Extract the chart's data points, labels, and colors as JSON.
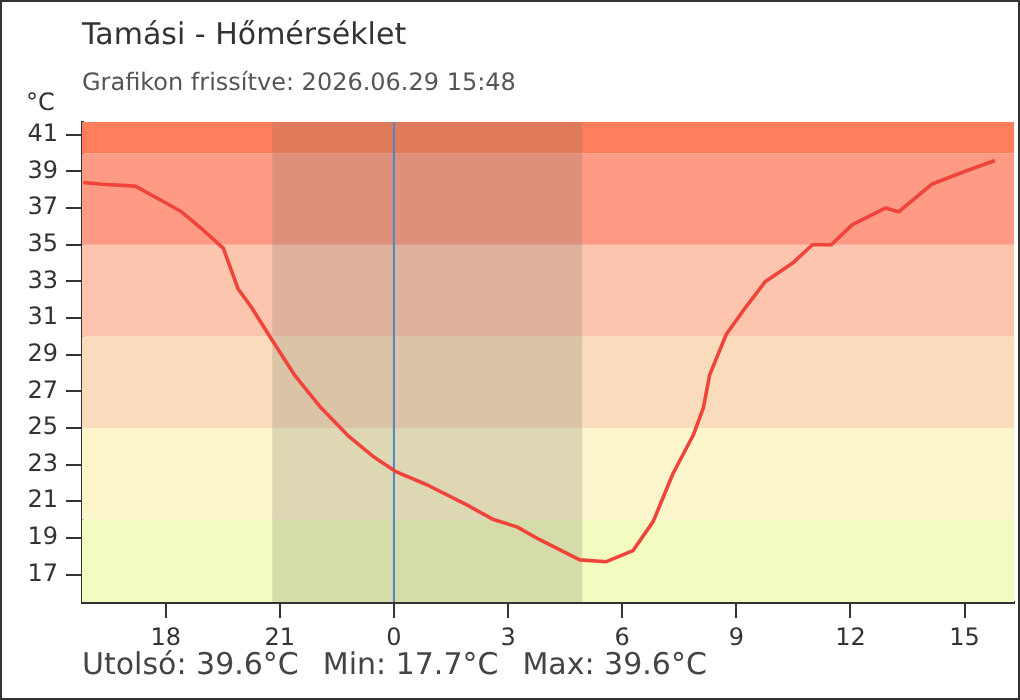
{
  "chart_data": {
    "type": "line",
    "title": "Tamási - Hőmérséklet",
    "subtitle": "Grafikon frissítve: 2026.06.29 15:48",
    "ylabel": "°C",
    "annotations": [
      "Utolsó: 39.6°C",
      "Min: 17.7°C",
      "Max: 39.6°C"
    ],
    "xlim": [
      "2026-06-28T15:48",
      "2026-06-29T16:18"
    ],
    "ylim": [
      15.5,
      41.7
    ],
    "xticks": [
      {
        "value": "2026-06-28T18:00",
        "label": "18"
      },
      {
        "value": "2026-06-28T21:00",
        "label": "21"
      },
      {
        "value": "2026-06-29T00:00",
        "label": "0"
      },
      {
        "value": "2026-06-29T03:00",
        "label": "3"
      },
      {
        "value": "2026-06-29T06:00",
        "label": "6"
      },
      {
        "value": "2026-06-29T09:00",
        "label": "9"
      },
      {
        "value": "2026-06-29T12:00",
        "label": "12"
      },
      {
        "value": "2026-06-29T15:00",
        "label": "15"
      }
    ],
    "yticks": [
      17,
      19,
      21,
      23,
      25,
      27,
      29,
      31,
      33,
      35,
      37,
      39,
      41
    ],
    "grid": false,
    "legend": false,
    "marker": "none",
    "line_style": "solid",
    "bands": [
      {
        "axis": "y",
        "from": 15.5,
        "to": 20,
        "color": "#f3fbc0"
      },
      {
        "axis": "y",
        "from": 20,
        "to": 25,
        "color": "#fdf6cc"
      },
      {
        "axis": "y",
        "from": 25,
        "to": 30,
        "color": "#fadcbc"
      },
      {
        "axis": "y",
        "from": 30,
        "to": 35,
        "color": "#fdc4ae"
      },
      {
        "axis": "y",
        "from": 35,
        "to": 40,
        "color": "#ff9a85"
      },
      {
        "axis": "y",
        "from": 40,
        "to": 41.7,
        "color": "#ff7f5c"
      },
      {
        "axis": "x",
        "from": "2026-06-28T20:48",
        "to": "2026-06-29T04:57",
        "color": "#6e6e5a"
      }
    ],
    "ref_lines": [
      {
        "axis": "x",
        "value": "2026-06-29T00:00",
        "color": "#4a86c8"
      }
    ],
    "series": [
      {
        "color": "#f0443a",
        "x": [
          "2026-06-28T15:50",
          "2026-06-28T16:20",
          "2026-06-28T17:12",
          "2026-06-28T17:54",
          "2026-06-28T18:25",
          "2026-06-28T18:56",
          "2026-06-28T19:31",
          "2026-06-28T19:54",
          "2026-06-28T20:15",
          "2026-06-28T20:46",
          "2026-06-28T21:23",
          "2026-06-28T22:05",
          "2026-06-28T22:47",
          "2026-06-28T23:29",
          "2026-06-29T00:04",
          "2026-06-29T00:52",
          "2026-06-29T01:55",
          "2026-06-29T02:37",
          "2026-06-29T03:14",
          "2026-06-29T03:50",
          "2026-06-29T04:53",
          "2026-06-29T05:35",
          "2026-06-29T06:17",
          "2026-06-29T06:49",
          "2026-06-29T07:20",
          "2026-06-29T07:52",
          "2026-06-29T08:08",
          "2026-06-29T08:18",
          "2026-06-29T08:44",
          "2026-06-29T09:15",
          "2026-06-29T09:46",
          "2026-06-29T10:29",
          "2026-06-29T11:00",
          "2026-06-29T11:30",
          "2026-06-29T12:03",
          "2026-06-29T12:55",
          "2026-06-29T13:16",
          "2026-06-29T14:08",
          "2026-06-29T15:00",
          "2026-06-29T15:48"
        ],
        "values": [
          38.4,
          38.3,
          38.2,
          37.4,
          36.8,
          35.9,
          34.8,
          32.6,
          31.6,
          29.9,
          27.9,
          26.1,
          24.6,
          23.4,
          22.6,
          21.9,
          20.8,
          20.0,
          19.6,
          18.9,
          17.8,
          17.7,
          18.3,
          19.9,
          22.5,
          24.6,
          26.1,
          27.9,
          30.1,
          31.6,
          33.0,
          34.0,
          35.0,
          35.0,
          36.1,
          37.0,
          36.8,
          38.3,
          39.0,
          39.6
        ]
      }
    ]
  }
}
